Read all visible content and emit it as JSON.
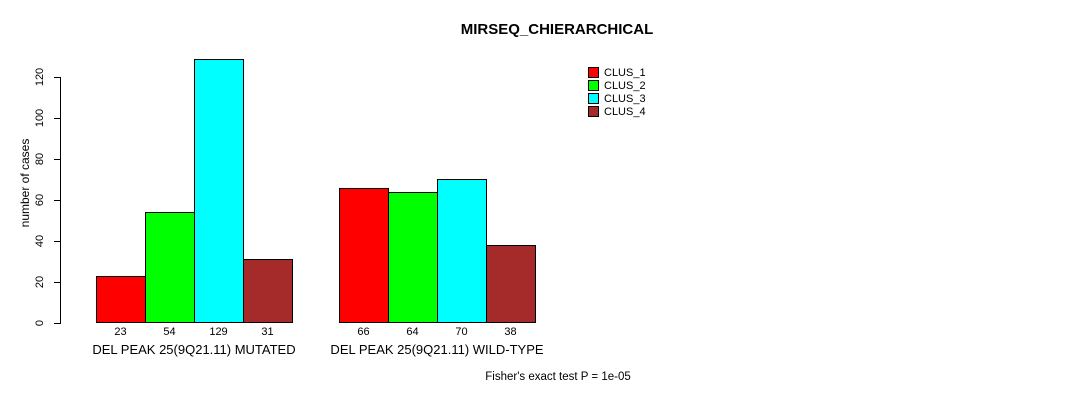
{
  "page": {
    "background_color": "#ffffff",
    "text_color": "#000000"
  },
  "chart_data": {
    "type": "bar",
    "title": "MIRSEQ_CHIERARCHICAL",
    "ylabel": "number of cases",
    "xlabel": "",
    "ylim": [
      0,
      129
    ],
    "yticks": [
      0,
      20,
      40,
      60,
      80,
      100,
      120
    ],
    "grid": false,
    "legend_position": "top-right",
    "categories": [
      "DEL PEAK 25(9Q21.11) MUTATED",
      "DEL PEAK 25(9Q21.11) WILD-TYPE"
    ],
    "series": [
      {
        "name": "CLUS_1",
        "color": "#ff0000",
        "values": [
          23,
          66
        ]
      },
      {
        "name": "CLUS_2",
        "color": "#00ff00",
        "values": [
          54,
          64
        ]
      },
      {
        "name": "CLUS_3",
        "color": "#00ffff",
        "values": [
          129,
          70
        ]
      },
      {
        "name": "CLUS_4",
        "color": "#a52a2a",
        "values": [
          31,
          38
        ]
      }
    ],
    "annotation": "Fisher's exact test P = 1e-05"
  }
}
